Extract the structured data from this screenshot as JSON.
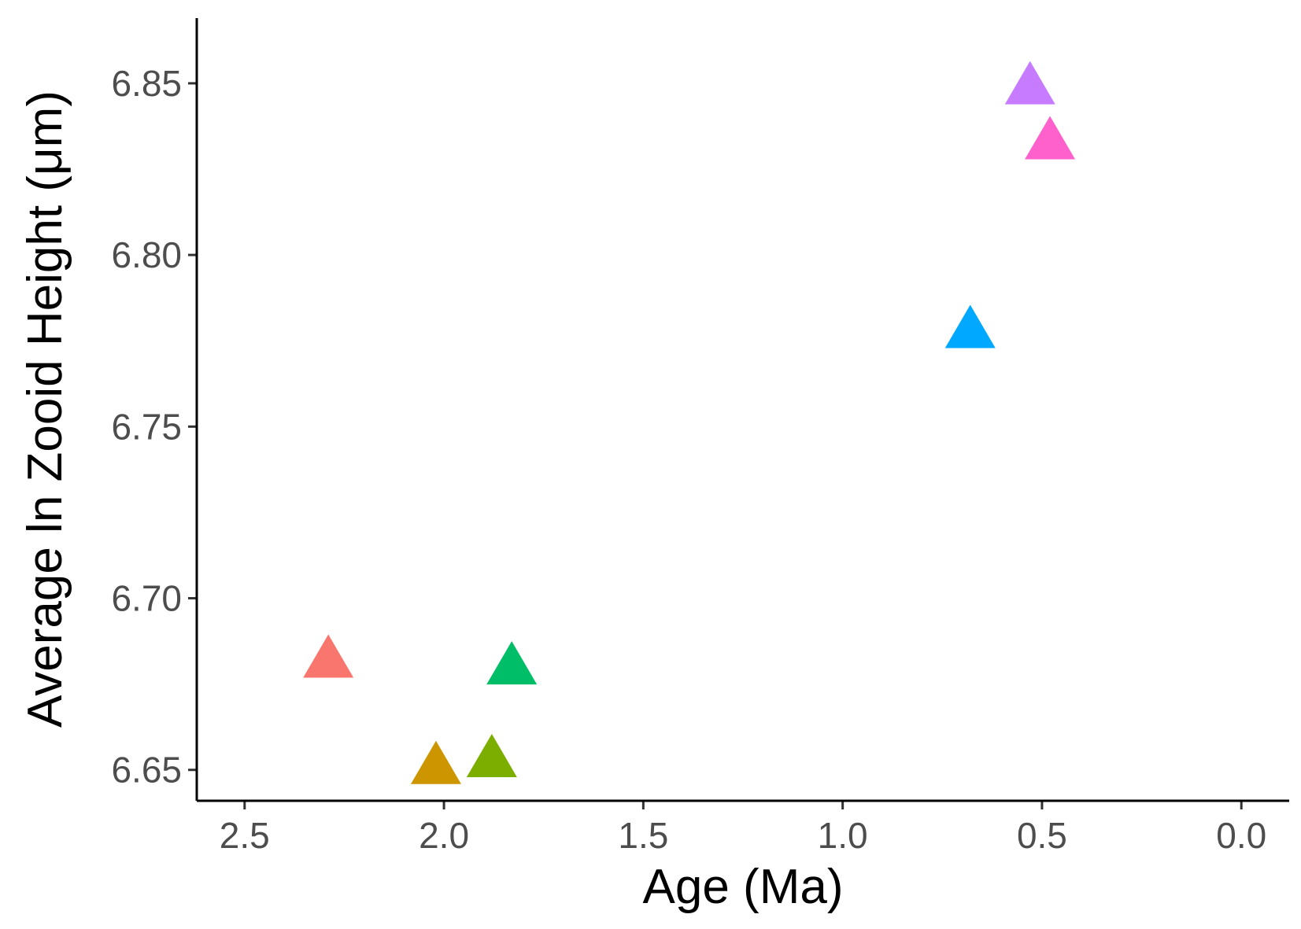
{
  "chart_data": {
    "type": "scatter",
    "xlabel": "Age (Ma)",
    "ylabel": "Average ln Zooid Height (μm)",
    "x_reversed": true,
    "xlim": [
      2.62,
      -0.12
    ],
    "ylim": [
      6.641,
      6.869
    ],
    "x_ticks": [
      2.5,
      2.0,
      1.5,
      1.0,
      0.5,
      0.0
    ],
    "x_tick_labels": [
      "2.5",
      "2.0",
      "1.5",
      "1.0",
      "0.5",
      "0.0"
    ],
    "y_ticks": [
      6.65,
      6.7,
      6.75,
      6.8,
      6.85
    ],
    "y_tick_labels": [
      "6.65",
      "6.70",
      "6.75",
      "6.80",
      "6.85"
    ],
    "marker": "triangle",
    "grid": false,
    "legend": "none",
    "points": [
      {
        "x": 2.29,
        "y": 6.681,
        "color": "#F8766D"
      },
      {
        "x": 2.02,
        "y": 6.65,
        "color": "#CD9600"
      },
      {
        "x": 1.88,
        "y": 6.652,
        "color": "#7CAE00"
      },
      {
        "x": 1.83,
        "y": 6.679,
        "color": "#00BE67"
      },
      {
        "x": 0.68,
        "y": 6.777,
        "color": "#00A9FF"
      },
      {
        "x": 0.53,
        "y": 6.848,
        "color": "#C77CFF"
      },
      {
        "x": 0.48,
        "y": 6.832,
        "color": "#FF61CC"
      }
    ]
  }
}
